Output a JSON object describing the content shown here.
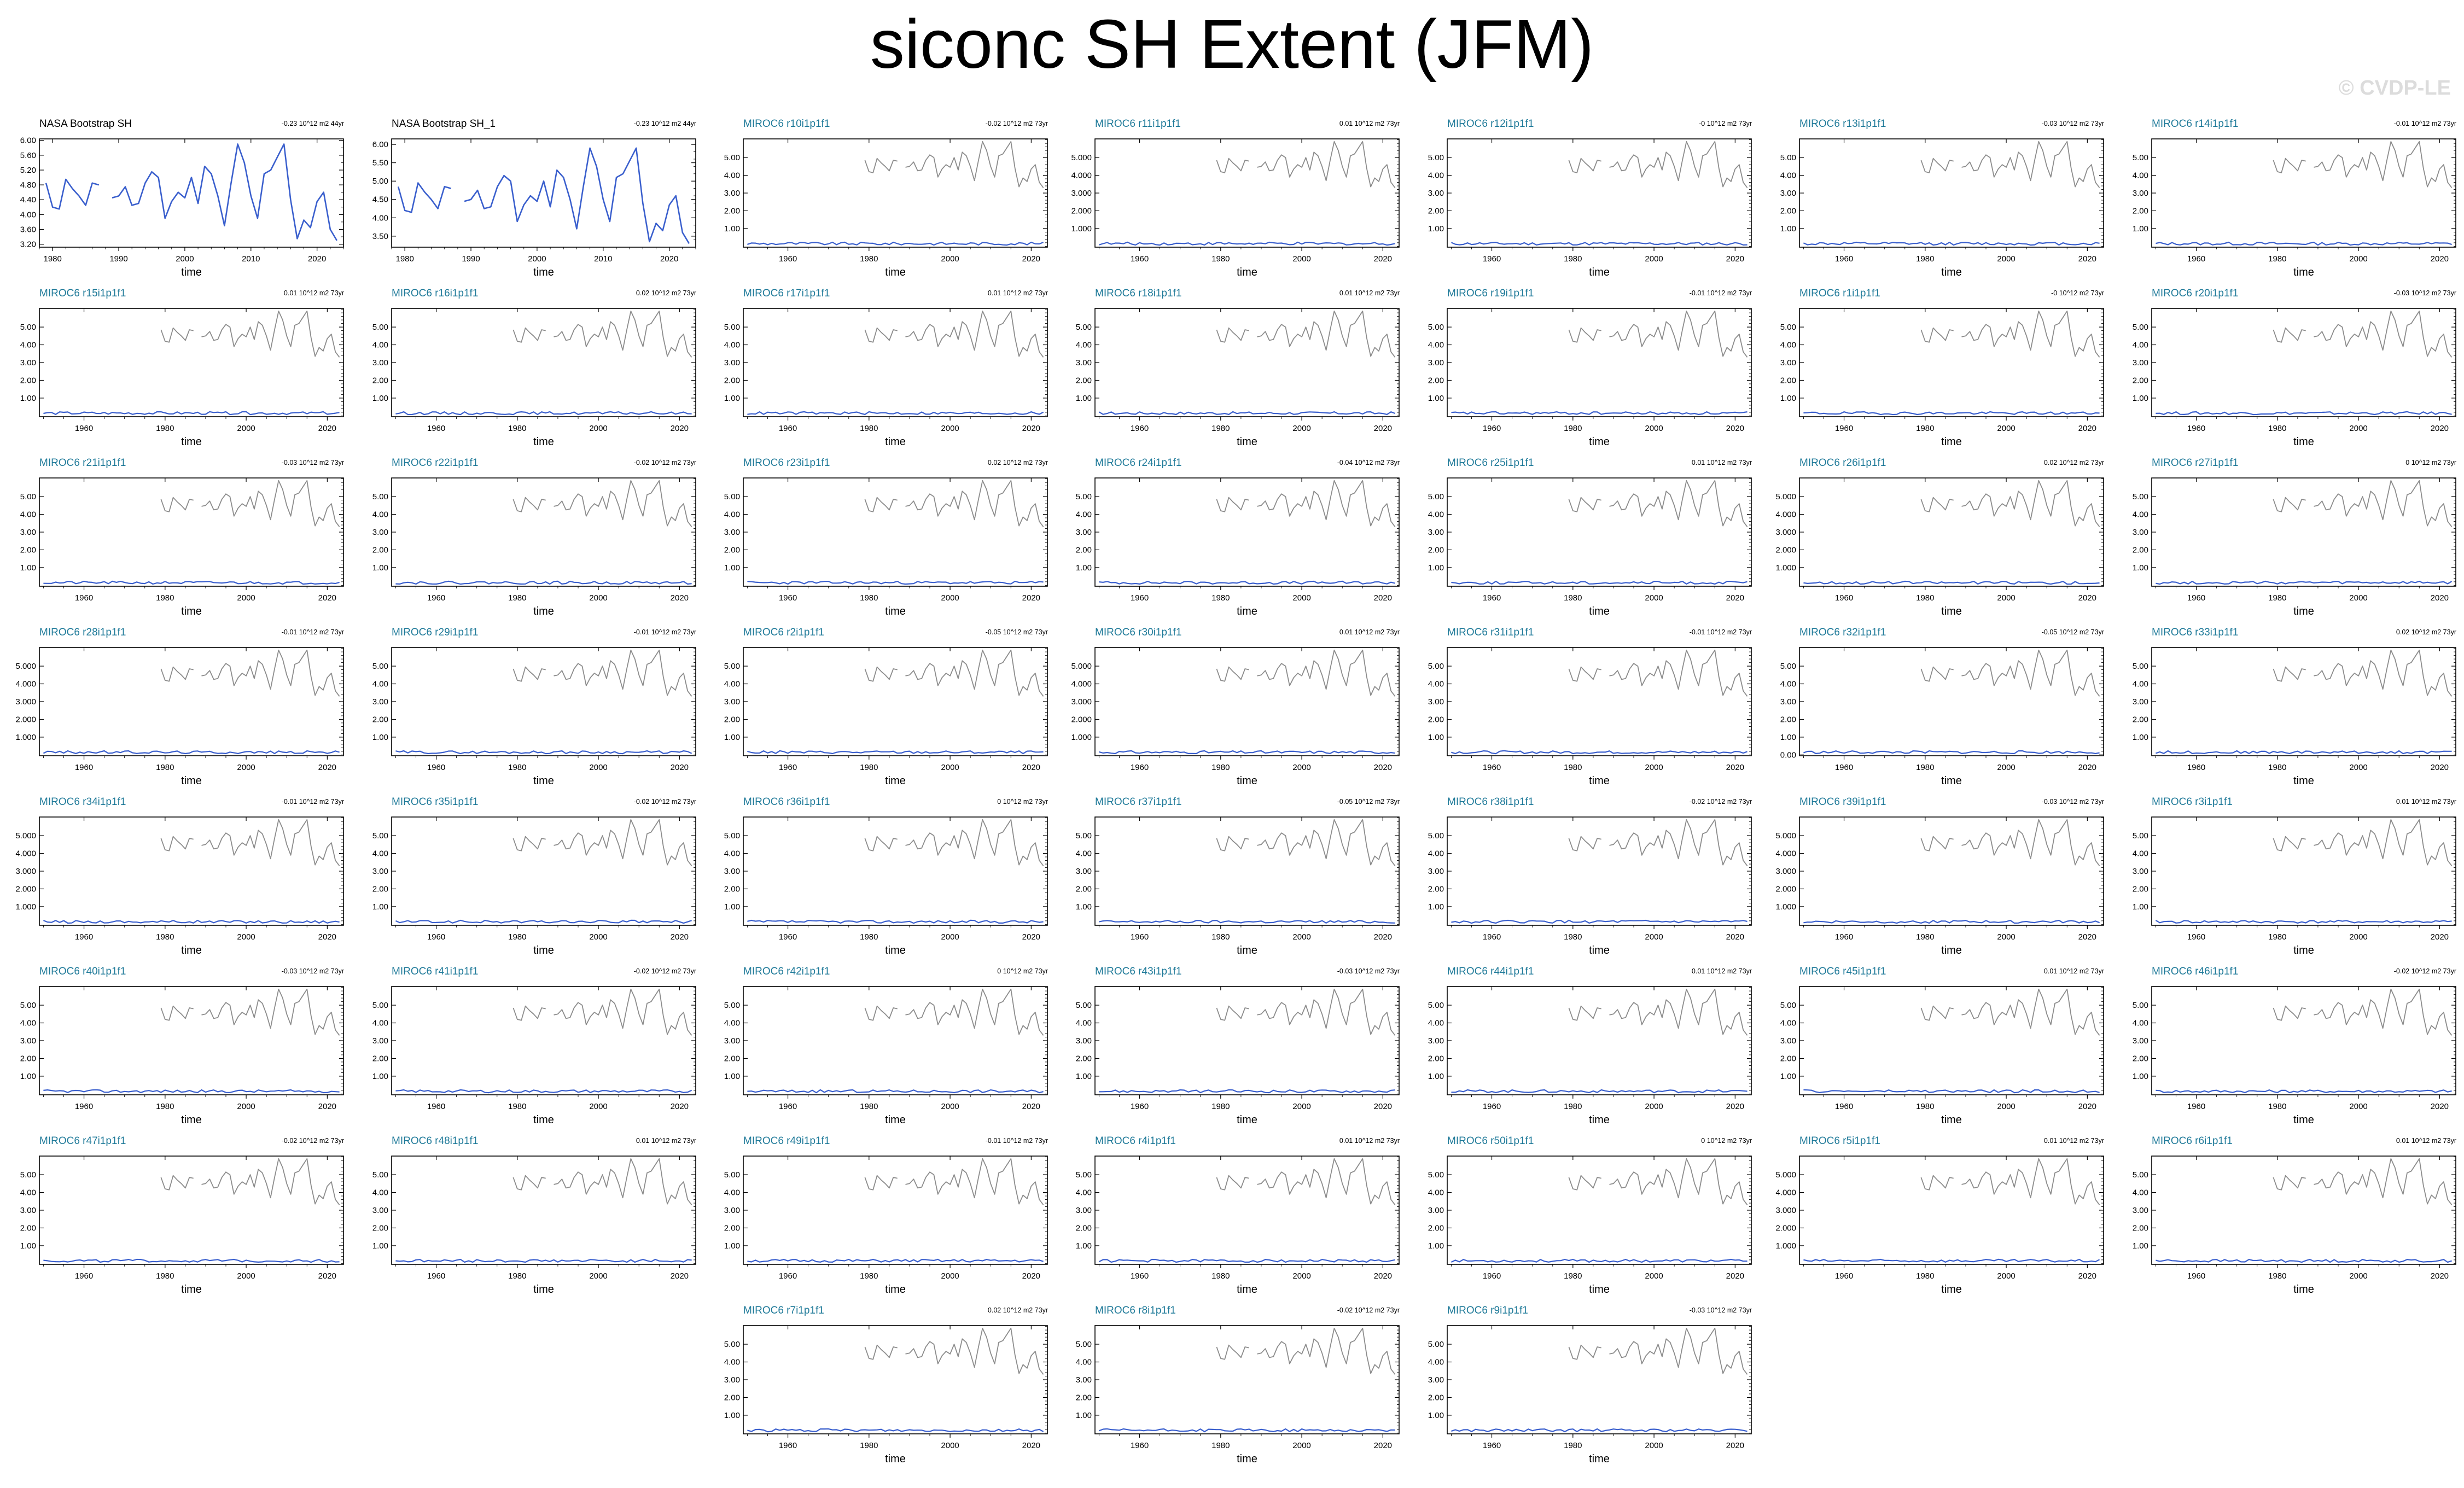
{
  "title": "siconc SH Extent (JFM)",
  "watermark": "© CVDP-LE",
  "colors": {
    "model_line": "#1f7a99",
    "obs_title": "#000000",
    "series_main": "#3a5fcd",
    "series_obs_overlay": "#8c8c8c"
  },
  "obs_series": [
    4.85,
    4.2,
    4.15,
    4.95,
    4.7,
    4.5,
    4.25,
    4.85,
    4.8,
    null,
    4.45,
    4.5,
    4.75,
    4.25,
    4.3,
    4.85,
    5.15,
    5.0,
    3.9,
    4.35,
    4.6,
    4.45,
    5.0,
    4.3,
    5.3,
    5.1,
    4.5,
    3.7,
    4.85,
    5.9,
    5.4,
    4.5,
    3.9,
    5.1,
    5.2,
    5.55,
    5.9,
    4.4,
    3.35,
    3.85,
    3.65,
    4.35,
    4.6,
    3.6,
    3.3
  ],
  "panels": [
    {
      "title": "NASA Bootstrap SH",
      "trend": "-0.23 10^12 m2 44yr",
      "style": "obs",
      "xlabel": "time",
      "xticks": [
        "1980",
        "1990",
        "2000",
        "2010",
        "2020"
      ],
      "yticks": [
        "6.00",
        "5.60",
        "5.20",
        "4.80",
        "4.40",
        "4.00",
        "3.60",
        "3.20"
      ]
    },
    {
      "title": "NASA Bootstrap SH_1",
      "trend": "-0.23 10^12 m2 44yr",
      "style": "obs",
      "xlabel": "time",
      "xticks": [
        "1980",
        "1990",
        "2000",
        "2010",
        "2020"
      ],
      "yticks": [
        "6.00",
        "5.50",
        "5.00",
        "4.50",
        "4.00",
        "3.50"
      ]
    },
    {
      "title": "MIROC6 r10i1p1f1",
      "trend": "-0.02 10^12 m2 73yr",
      "style": "model",
      "xlabel": "time",
      "xticks": [
        "1960",
        "1980",
        "2000",
        "2020"
      ],
      "yticks": [
        "5.00",
        "4.00",
        "3.00",
        "2.00",
        "1.00"
      ]
    },
    {
      "title": "MIROC6 r11i1p1f1",
      "trend": "0.01 10^12 m2 73yr",
      "style": "model",
      "xlabel": "time",
      "xticks": [
        "1960",
        "1980",
        "2000",
        "2020"
      ],
      "yticks": [
        "5.000",
        "4.000",
        "3.000",
        "2.000",
        "1.000"
      ]
    },
    {
      "title": "MIROC6 r12i1p1f1",
      "trend": "-0 10^12 m2 73yr",
      "style": "model",
      "xlabel": "time",
      "xticks": [
        "1960",
        "1980",
        "2000",
        "2020"
      ],
      "yticks": [
        "5.00",
        "4.00",
        "3.00",
        "2.00",
        "1.00"
      ]
    },
    {
      "title": "MIROC6 r13i1p1f1",
      "trend": "-0.03 10^12 m2 73yr",
      "style": "model",
      "xlabel": "time",
      "xticks": [
        "1960",
        "1980",
        "2000",
        "2020"
      ],
      "yticks": [
        "5.00",
        "4.00",
        "3.00",
        "2.00",
        "1.00"
      ]
    },
    {
      "title": "MIROC6 r14i1p1f1",
      "trend": "-0.01 10^12 m2 73yr",
      "style": "model",
      "xlabel": "time",
      "xticks": [
        "1960",
        "1980",
        "2000",
        "2020"
      ],
      "yticks": [
        "5.00",
        "4.00",
        "3.00",
        "2.00",
        "1.00"
      ]
    },
    {
      "title": "MIROC6 r15i1p1f1",
      "trend": "0.01 10^12 m2 73yr",
      "style": "model",
      "xlabel": "time",
      "xticks": [
        "1960",
        "1980",
        "2000",
        "2020"
      ],
      "yticks": [
        "5.00",
        "4.00",
        "3.00",
        "2.00",
        "1.00"
      ]
    },
    {
      "title": "MIROC6 r16i1p1f1",
      "trend": "0.02 10^12 m2 73yr",
      "style": "model",
      "xlabel": "time",
      "xticks": [
        "1960",
        "1980",
        "2000",
        "2020"
      ],
      "yticks": [
        "5.00",
        "4.00",
        "3.00",
        "2.00",
        "1.00"
      ]
    },
    {
      "title": "MIROC6 r17i1p1f1",
      "trend": "0.01 10^12 m2 73yr",
      "style": "model",
      "xlabel": "time",
      "xticks": [
        "1960",
        "1980",
        "2000",
        "2020"
      ],
      "yticks": [
        "5.00",
        "4.00",
        "3.00",
        "2.00",
        "1.00"
      ]
    },
    {
      "title": "MIROC6 r18i1p1f1",
      "trend": "0.01 10^12 m2 73yr",
      "style": "model",
      "xlabel": "time",
      "xticks": [
        "1960",
        "1980",
        "2000",
        "2020"
      ],
      "yticks": [
        "5.00",
        "4.00",
        "3.00",
        "2.00",
        "1.00"
      ]
    },
    {
      "title": "MIROC6 r19i1p1f1",
      "trend": "-0.01 10^12 m2 73yr",
      "style": "model",
      "xlabel": "time",
      "xticks": [
        "1960",
        "1980",
        "2000",
        "2020"
      ],
      "yticks": [
        "5.00",
        "4.00",
        "3.00",
        "2.00",
        "1.00"
      ]
    },
    {
      "title": "MIROC6 r1i1p1f1",
      "trend": "-0 10^12 m2 73yr",
      "style": "model",
      "xlabel": "time",
      "xticks": [
        "1960",
        "1980",
        "2000",
        "2020"
      ],
      "yticks": [
        "5.00",
        "4.00",
        "3.00",
        "2.00",
        "1.00"
      ]
    },
    {
      "title": "MIROC6 r20i1p1f1",
      "trend": "-0.03 10^12 m2 73yr",
      "style": "model",
      "xlabel": "time",
      "xticks": [
        "1960",
        "1980",
        "2000",
        "2020"
      ],
      "yticks": [
        "5.00",
        "4.00",
        "3.00",
        "2.00",
        "1.00"
      ]
    },
    {
      "title": "MIROC6 r21i1p1f1",
      "trend": "-0.03 10^12 m2 73yr",
      "style": "model",
      "xlabel": "time",
      "xticks": [
        "1960",
        "1980",
        "2000",
        "2020"
      ],
      "yticks": [
        "5.00",
        "4.00",
        "3.00",
        "2.00",
        "1.00"
      ]
    },
    {
      "title": "MIROC6 r22i1p1f1",
      "trend": "-0.02 10^12 m2 73yr",
      "style": "model",
      "xlabel": "time",
      "xticks": [
        "1960",
        "1980",
        "2000",
        "2020"
      ],
      "yticks": [
        "5.00",
        "4.00",
        "3.00",
        "2.00",
        "1.00"
      ]
    },
    {
      "title": "MIROC6 r23i1p1f1",
      "trend": "0.02 10^12 m2 73yr",
      "style": "model",
      "xlabel": "time",
      "xticks": [
        "1960",
        "1980",
        "2000",
        "2020"
      ],
      "yticks": [
        "5.00",
        "4.00",
        "3.00",
        "2.00",
        "1.00"
      ]
    },
    {
      "title": "MIROC6 r24i1p1f1",
      "trend": "-0.04 10^12 m2 73yr",
      "style": "model",
      "xlabel": "time",
      "xticks": [
        "1960",
        "1980",
        "2000",
        "2020"
      ],
      "yticks": [
        "5.00",
        "4.00",
        "3.00",
        "2.00",
        "1.00"
      ]
    },
    {
      "title": "MIROC6 r25i1p1f1",
      "trend": "0.01 10^12 m2 73yr",
      "style": "model",
      "xlabel": "time",
      "xticks": [
        "1960",
        "1980",
        "2000",
        "2020"
      ],
      "yticks": [
        "5.00",
        "4.00",
        "3.00",
        "2.00",
        "1.00"
      ]
    },
    {
      "title": "MIROC6 r26i1p1f1",
      "trend": "0.02 10^12 m2 73yr",
      "style": "model",
      "xlabel": "time",
      "xticks": [
        "1960",
        "1980",
        "2000",
        "2020"
      ],
      "yticks": [
        "5.000",
        "4.000",
        "3.000",
        "2.000",
        "1.000"
      ]
    },
    {
      "title": "MIROC6 r27i1p1f1",
      "trend": "0 10^12 m2 73yr",
      "style": "model",
      "xlabel": "time",
      "xticks": [
        "1960",
        "1980",
        "2000",
        "2020"
      ],
      "yticks": [
        "5.00",
        "4.00",
        "3.00",
        "2.00",
        "1.00"
      ]
    },
    {
      "title": "MIROC6 r28i1p1f1",
      "trend": "-0.01 10^12 m2 73yr",
      "style": "model",
      "xlabel": "time",
      "xticks": [
        "1960",
        "1980",
        "2000",
        "2020"
      ],
      "yticks": [
        "5.000",
        "4.000",
        "3.000",
        "2.000",
        "1.000"
      ]
    },
    {
      "title": "MIROC6 r29i1p1f1",
      "trend": "-0.01 10^12 m2 73yr",
      "style": "model",
      "xlabel": "time",
      "xticks": [
        "1960",
        "1980",
        "2000",
        "2020"
      ],
      "yticks": [
        "5.00",
        "4.00",
        "3.00",
        "2.00",
        "1.00"
      ]
    },
    {
      "title": "MIROC6 r2i1p1f1",
      "trend": "-0.05 10^12 m2 73yr",
      "style": "model",
      "xlabel": "time",
      "xticks": [
        "1960",
        "1980",
        "2000",
        "2020"
      ],
      "yticks": [
        "5.00",
        "4.00",
        "3.00",
        "2.00",
        "1.00"
      ]
    },
    {
      "title": "MIROC6 r30i1p1f1",
      "trend": "0.01 10^12 m2 73yr",
      "style": "model",
      "xlabel": "time",
      "xticks": [
        "1960",
        "1980",
        "2000",
        "2020"
      ],
      "yticks": [
        "5.000",
        "4.000",
        "3.000",
        "2.000",
        "1.000"
      ]
    },
    {
      "title": "MIROC6 r31i1p1f1",
      "trend": "-0.01 10^12 m2 73yr",
      "style": "model",
      "xlabel": "time",
      "xticks": [
        "1960",
        "1980",
        "2000",
        "2020"
      ],
      "yticks": [
        "5.00",
        "4.00",
        "3.00",
        "2.00",
        "1.00"
      ]
    },
    {
      "title": "MIROC6 r32i1p1f1",
      "trend": "-0.05 10^12 m2 73yr",
      "style": "model",
      "xlabel": "time",
      "xticks": [
        "1960",
        "1980",
        "2000",
        "2020"
      ],
      "yticks": [
        "5.00",
        "4.00",
        "3.00",
        "2.00",
        "1.00",
        "0.00"
      ]
    },
    {
      "title": "MIROC6 r33i1p1f1",
      "trend": "0.02 10^12 m2 73yr",
      "style": "model",
      "xlabel": "time",
      "xticks": [
        "1960",
        "1980",
        "2000",
        "2020"
      ],
      "yticks": [
        "5.00",
        "4.00",
        "3.00",
        "2.00",
        "1.00"
      ]
    },
    {
      "title": "MIROC6 r34i1p1f1",
      "trend": "-0.01 10^12 m2 73yr",
      "style": "model",
      "xlabel": "time",
      "xticks": [
        "1960",
        "1980",
        "2000",
        "2020"
      ],
      "yticks": [
        "5.000",
        "4.000",
        "3.000",
        "2.000",
        "1.000"
      ]
    },
    {
      "title": "MIROC6 r35i1p1f1",
      "trend": "-0.02 10^12 m2 73yr",
      "style": "model",
      "xlabel": "time",
      "xticks": [
        "1960",
        "1980",
        "2000",
        "2020"
      ],
      "yticks": [
        "5.00",
        "4.00",
        "3.00",
        "2.00",
        "1.00"
      ]
    },
    {
      "title": "MIROC6 r36i1p1f1",
      "trend": "0 10^12 m2 73yr",
      "style": "model",
      "xlabel": "time",
      "xticks": [
        "1960",
        "1980",
        "2000",
        "2020"
      ],
      "yticks": [
        "5.00",
        "4.00",
        "3.00",
        "2.00",
        "1.00"
      ]
    },
    {
      "title": "MIROC6 r37i1p1f1",
      "trend": "-0.05 10^12 m2 73yr",
      "style": "model",
      "xlabel": "time",
      "xticks": [
        "1960",
        "1980",
        "2000",
        "2020"
      ],
      "yticks": [
        "5.00",
        "4.00",
        "3.00",
        "2.00",
        "1.00"
      ]
    },
    {
      "title": "MIROC6 r38i1p1f1",
      "trend": "-0.02 10^12 m2 73yr",
      "style": "model",
      "xlabel": "time",
      "xticks": [
        "1960",
        "1980",
        "2000",
        "2020"
      ],
      "yticks": [
        "5.00",
        "4.00",
        "3.00",
        "2.00",
        "1.00"
      ]
    },
    {
      "title": "MIROC6 r39i1p1f1",
      "trend": "-0.03 10^12 m2 73yr",
      "style": "model",
      "xlabel": "time",
      "xticks": [
        "1960",
        "1980",
        "2000",
        "2020"
      ],
      "yticks": [
        "5.000",
        "4.000",
        "3.000",
        "2.000",
        "1.000"
      ]
    },
    {
      "title": "MIROC6 r3i1p1f1",
      "trend": "0.01 10^12 m2 73yr",
      "style": "model",
      "xlabel": "time",
      "xticks": [
        "1960",
        "1980",
        "2000",
        "2020"
      ],
      "yticks": [
        "5.00",
        "4.00",
        "3.00",
        "2.00",
        "1.00"
      ]
    },
    {
      "title": "MIROC6 r40i1p1f1",
      "trend": "-0.03 10^12 m2 73yr",
      "style": "model",
      "xlabel": "time",
      "xticks": [
        "1960",
        "1980",
        "2000",
        "2020"
      ],
      "yticks": [
        "5.00",
        "4.00",
        "3.00",
        "2.00",
        "1.00"
      ]
    },
    {
      "title": "MIROC6 r41i1p1f1",
      "trend": "-0.02 10^12 m2 73yr",
      "style": "model",
      "xlabel": "time",
      "xticks": [
        "1960",
        "1980",
        "2000",
        "2020"
      ],
      "yticks": [
        "5.00",
        "4.00",
        "3.00",
        "2.00",
        "1.00"
      ]
    },
    {
      "title": "MIROC6 r42i1p1f1",
      "trend": "0 10^12 m2 73yr",
      "style": "model",
      "xlabel": "time",
      "xticks": [
        "1960",
        "1980",
        "2000",
        "2020"
      ],
      "yticks": [
        "5.00",
        "4.00",
        "3.00",
        "2.00",
        "1.00"
      ]
    },
    {
      "title": "MIROC6 r43i1p1f1",
      "trend": "-0.03 10^12 m2 73yr",
      "style": "model",
      "xlabel": "time",
      "xticks": [
        "1960",
        "1980",
        "2000",
        "2020"
      ],
      "yticks": [
        "5.00",
        "4.00",
        "3.00",
        "2.00",
        "1.00"
      ]
    },
    {
      "title": "MIROC6 r44i1p1f1",
      "trend": "0.01 10^12 m2 73yr",
      "style": "model",
      "xlabel": "time",
      "xticks": [
        "1960",
        "1980",
        "2000",
        "2020"
      ],
      "yticks": [
        "5.00",
        "4.00",
        "3.00",
        "2.00",
        "1.00"
      ]
    },
    {
      "title": "MIROC6 r45i1p1f1",
      "trend": "0.01 10^12 m2 73yr",
      "style": "model",
      "xlabel": "time",
      "xticks": [
        "1960",
        "1980",
        "2000",
        "2020"
      ],
      "yticks": [
        "5.00",
        "4.00",
        "3.00",
        "2.00",
        "1.00"
      ]
    },
    {
      "title": "MIROC6 r46i1p1f1",
      "trend": "-0.02 10^12 m2 73yr",
      "style": "model",
      "xlabel": "time",
      "xticks": [
        "1960",
        "1980",
        "2000",
        "2020"
      ],
      "yticks": [
        "5.00",
        "4.00",
        "3.00",
        "2.00",
        "1.00"
      ]
    },
    {
      "title": "MIROC6 r47i1p1f1",
      "trend": "-0.02 10^12 m2 73yr",
      "style": "model",
      "xlabel": "time",
      "xticks": [
        "1960",
        "1980",
        "2000",
        "2020"
      ],
      "yticks": [
        "5.00",
        "4.00",
        "3.00",
        "2.00",
        "1.00"
      ]
    },
    {
      "title": "MIROC6 r48i1p1f1",
      "trend": "0.01 10^12 m2 73yr",
      "style": "model",
      "xlabel": "time",
      "xticks": [
        "1960",
        "1980",
        "2000",
        "2020"
      ],
      "yticks": [
        "5.00",
        "4.00",
        "3.00",
        "2.00",
        "1.00"
      ]
    },
    {
      "title": "MIROC6 r49i1p1f1",
      "trend": "-0.01 10^12 m2 73yr",
      "style": "model",
      "xlabel": "time",
      "xticks": [
        "1960",
        "1980",
        "2000",
        "2020"
      ],
      "yticks": [
        "5.00",
        "4.00",
        "3.00",
        "2.00",
        "1.00"
      ]
    },
    {
      "title": "MIROC6 r4i1p1f1",
      "trend": "0.01 10^12 m2 73yr",
      "style": "model",
      "xlabel": "time",
      "xticks": [
        "1960",
        "1980",
        "2000",
        "2020"
      ],
      "yticks": [
        "5.00",
        "4.00",
        "3.00",
        "2.00",
        "1.00"
      ]
    },
    {
      "title": "MIROC6 r50i1p1f1",
      "trend": "0 10^12 m2 73yr",
      "style": "model",
      "xlabel": "time",
      "xticks": [
        "1960",
        "1980",
        "2000",
        "2020"
      ],
      "yticks": [
        "5.00",
        "4.00",
        "3.00",
        "2.00",
        "1.00"
      ]
    },
    {
      "title": "MIROC6 r5i1p1f1",
      "trend": "0.01 10^12 m2 73yr",
      "style": "model",
      "xlabel": "time",
      "xticks": [
        "1960",
        "1980",
        "2000",
        "2020"
      ],
      "yticks": [
        "5.000",
        "4.000",
        "3.000",
        "2.000",
        "1.000"
      ]
    },
    {
      "title": "MIROC6 r6i1p1f1",
      "trend": "0.01 10^12 m2 73yr",
      "style": "model",
      "xlabel": "time",
      "xticks": [
        "1960",
        "1980",
        "2000",
        "2020"
      ],
      "yticks": [
        "5.00",
        "4.00",
        "3.00",
        "2.00",
        "1.00"
      ]
    },
    {
      "title": "MIROC6 r7i1p1f1",
      "trend": "0.02 10^12 m2 73yr",
      "style": "model",
      "xlabel": "time",
      "xticks": [
        "1960",
        "1980",
        "2000",
        "2020"
      ],
      "yticks": [
        "5.00",
        "4.00",
        "3.00",
        "2.00",
        "1.00"
      ]
    },
    {
      "title": "MIROC6 r8i1p1f1",
      "trend": "-0.02 10^12 m2 73yr",
      "style": "model",
      "xlabel": "time",
      "xticks": [
        "1960",
        "1980",
        "2000",
        "2020"
      ],
      "yticks": [
        "5.00",
        "4.00",
        "3.00",
        "2.00",
        "1.00"
      ]
    },
    {
      "title": "MIROC6 r9i1p1f1",
      "trend": "-0.03 10^12 m2 73yr",
      "style": "model",
      "xlabel": "time",
      "xticks": [
        "1960",
        "1980",
        "2000",
        "2020"
      ],
      "yticks": [
        "5.00",
        "4.00",
        "3.00",
        "2.00",
        "1.00"
      ]
    }
  ],
  "chart_data": {
    "type": "line",
    "title": "siconc SH Extent (JFM)",
    "xlabel": "time",
    "obs_x": [
      1979,
      1980,
      1981,
      1982,
      1983,
      1984,
      1985,
      1986,
      1987,
      1988,
      1989,
      1990,
      1991,
      1992,
      1993,
      1994,
      1995,
      1996,
      1997,
      1998,
      1999,
      2000,
      2001,
      2002,
      2003,
      2004,
      2005,
      2006,
      2007,
      2008,
      2009,
      2010,
      2011,
      2012,
      2013,
      2014,
      2015,
      2016,
      2017,
      2018,
      2019,
      2020,
      2021,
      2022,
      2023
    ],
    "obs_y": [
      4.85,
      4.2,
      4.15,
      4.95,
      4.7,
      4.5,
      4.25,
      4.85,
      4.8,
      null,
      4.45,
      4.5,
      4.75,
      4.25,
      4.3,
      4.85,
      5.15,
      5.0,
      3.9,
      4.35,
      4.6,
      4.45,
      5.0,
      4.3,
      5.3,
      5.1,
      4.5,
      3.7,
      4.85,
      5.9,
      5.4,
      4.5,
      3.9,
      5.1,
      5.2,
      5.55,
      5.9,
      4.4,
      3.35,
      3.85,
      3.65,
      4.35,
      4.6,
      3.6,
      3.3
    ],
    "model_xlim": [
      1950,
      2023
    ],
    "model_ylim": [
      0,
      6
    ],
    "model_series_value_approx": 0.15
  }
}
